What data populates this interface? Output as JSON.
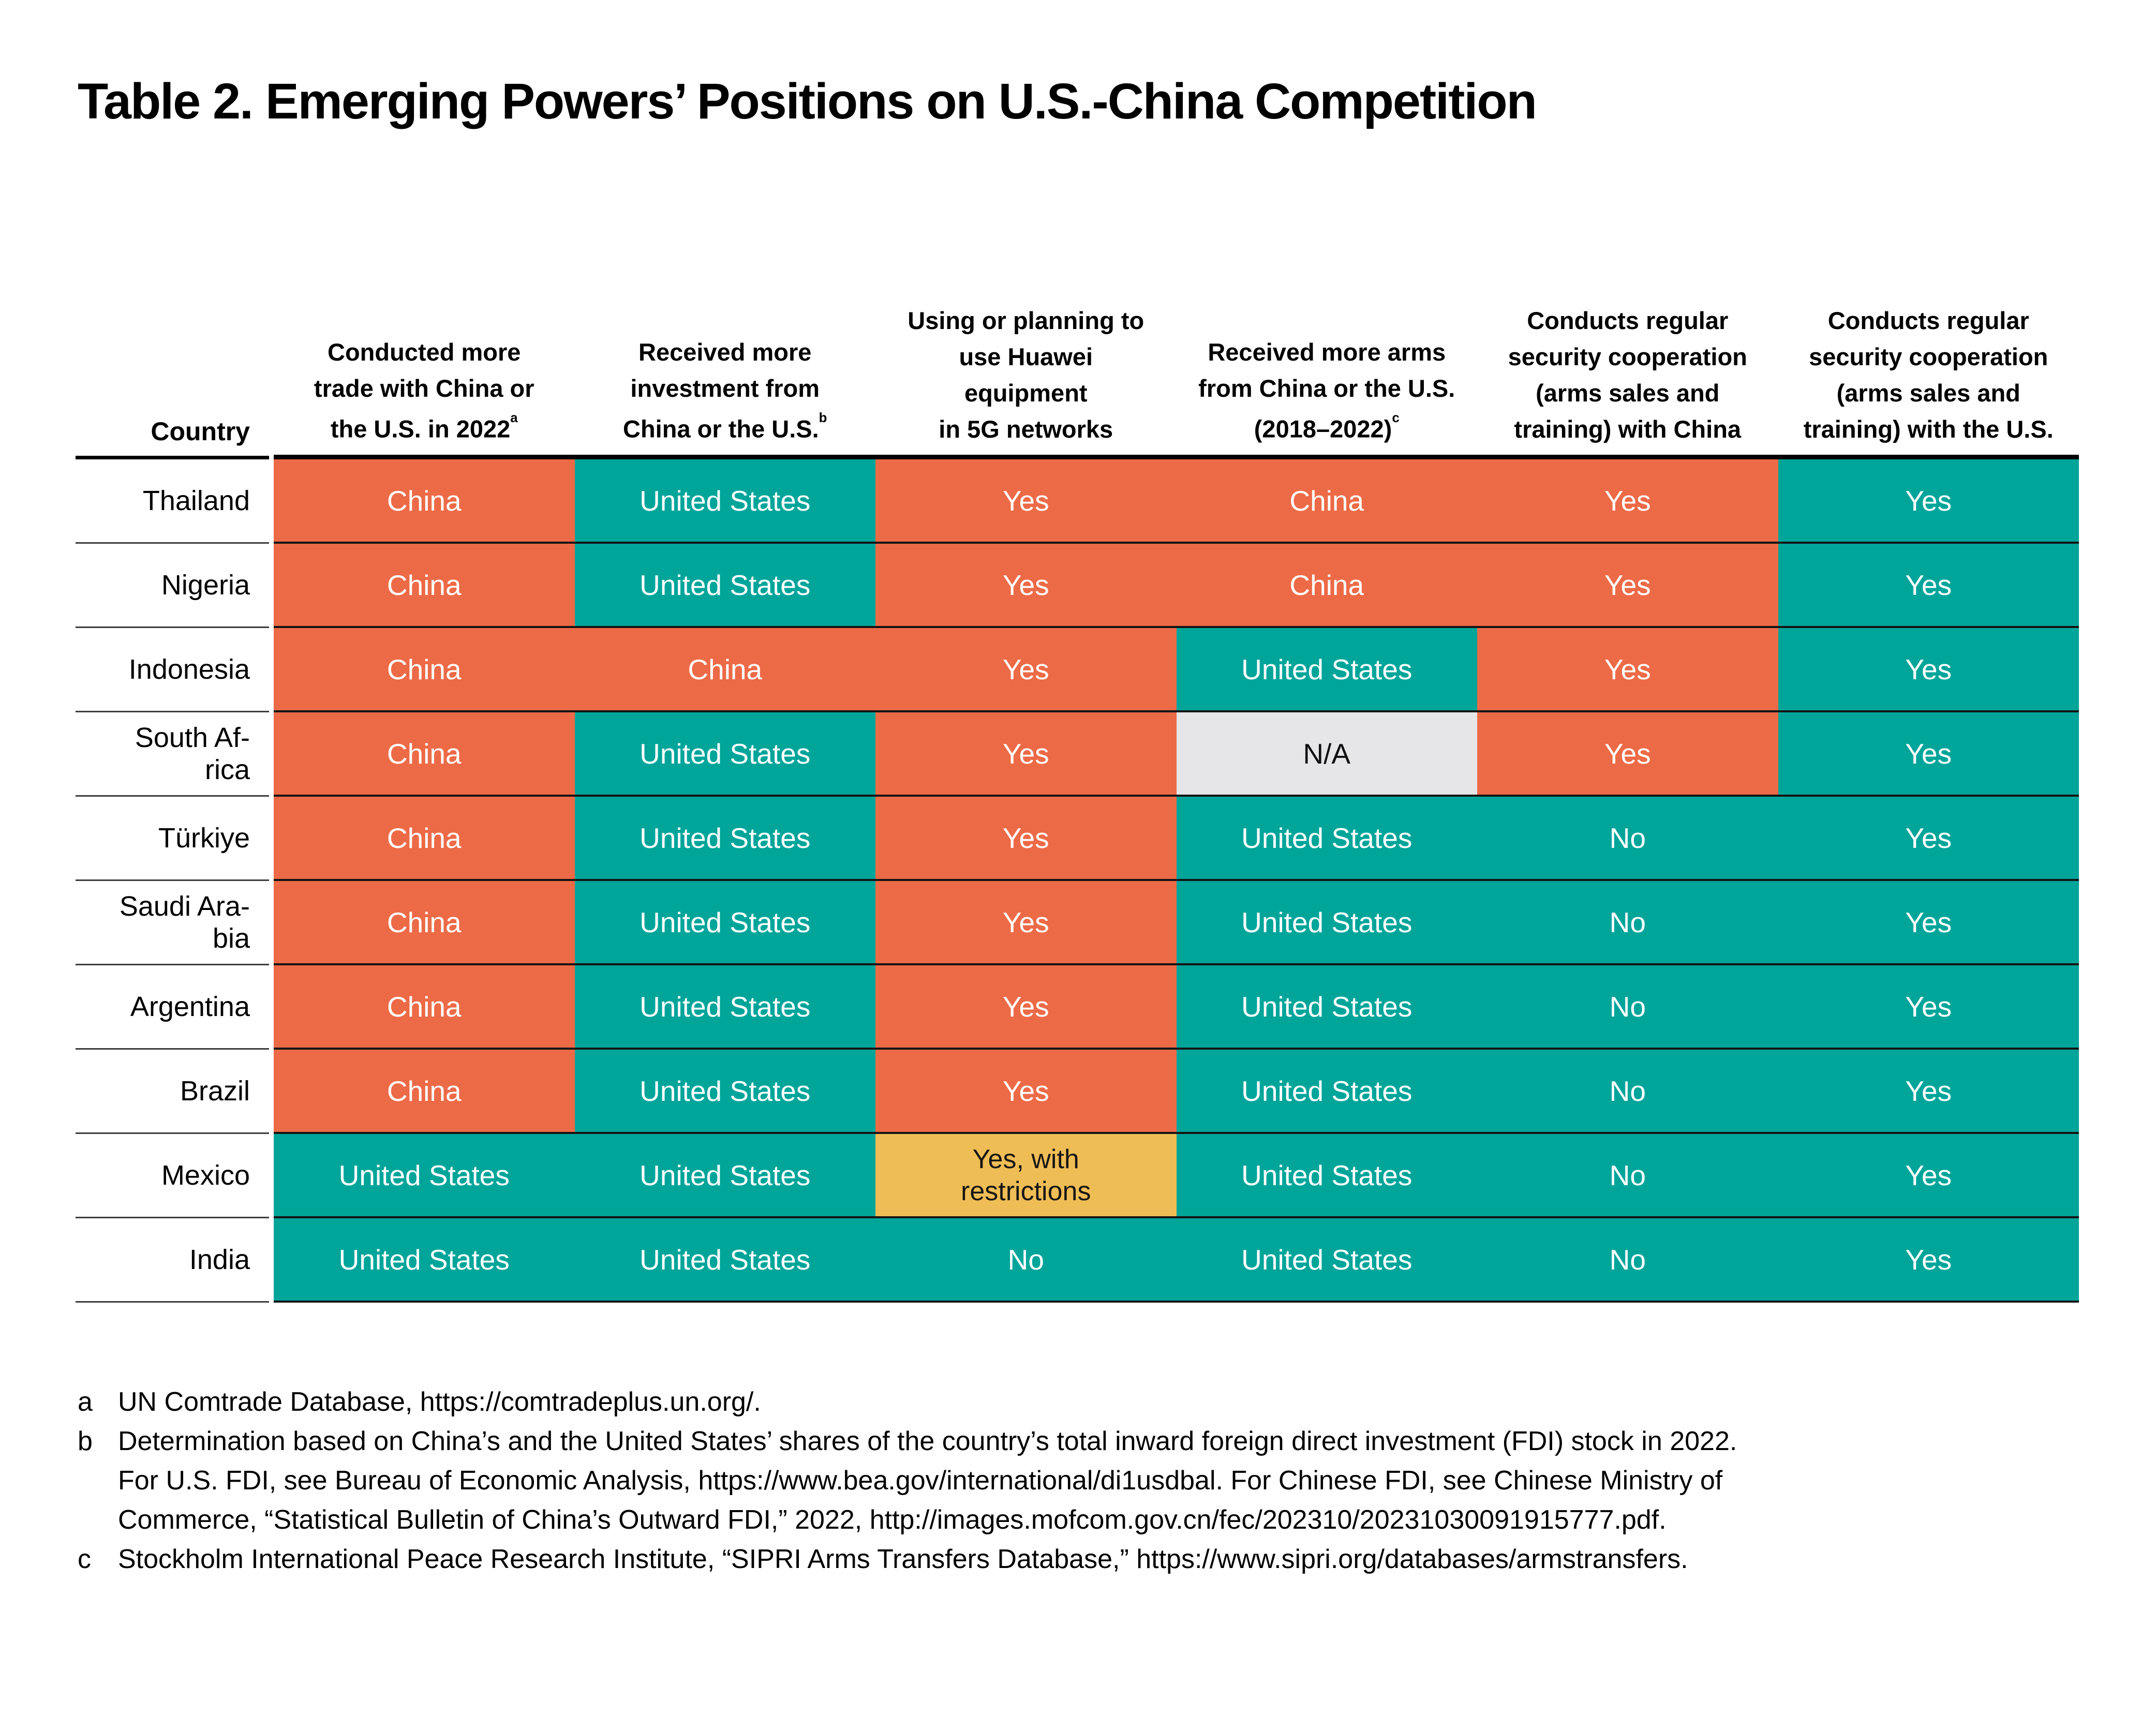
{
  "title": "Table 2. Emerging Powers’ Positions on U.S.-China Competition",
  "colors": {
    "china_orange": "#ED6A47",
    "us_teal": "#00A59A",
    "restricted_amber": "#EFBD55",
    "na_gray": "#E6E6E9",
    "rule_black": "#000000"
  },
  "table": {
    "country_header": "Country",
    "columns": [
      {
        "text": "Conducted more\ntrade with China or\nthe U.S. in 2022",
        "sup": "a"
      },
      {
        "text": "Received more\ninvestment from\nChina or the U.S.",
        "sup": "b"
      },
      {
        "text": "Using or planning to\nuse Huawei\nequipment\nin 5G networks",
        "sup": ""
      },
      {
        "text": "Received more arms\nfrom China or the U.S.\n(2018–2022)",
        "sup": "c"
      },
      {
        "text": "Conducts regular\nsecurity cooperation\n(arms sales and\ntraining) with China",
        "sup": ""
      },
      {
        "text": "Conducts regular\nsecurity cooperation\n(arms sales and\ntraining) with the U.S.",
        "sup": ""
      }
    ],
    "rows": [
      {
        "country": "Thailand",
        "cells": [
          {
            "text": "China",
            "type": "china"
          },
          {
            "text": "United States",
            "type": "us"
          },
          {
            "text": "Yes",
            "type": "china"
          },
          {
            "text": "China",
            "type": "china"
          },
          {
            "text": "Yes",
            "type": "china"
          },
          {
            "text": "Yes",
            "type": "us"
          }
        ]
      },
      {
        "country": "Nigeria",
        "cells": [
          {
            "text": "China",
            "type": "china"
          },
          {
            "text": "United States",
            "type": "us"
          },
          {
            "text": "Yes",
            "type": "china"
          },
          {
            "text": "China",
            "type": "china"
          },
          {
            "text": "Yes",
            "type": "china"
          },
          {
            "text": "Yes",
            "type": "us"
          }
        ]
      },
      {
        "country": "Indonesia",
        "cells": [
          {
            "text": "China",
            "type": "china"
          },
          {
            "text": "China",
            "type": "china"
          },
          {
            "text": "Yes",
            "type": "china"
          },
          {
            "text": "United States",
            "type": "us"
          },
          {
            "text": "Yes",
            "type": "china"
          },
          {
            "text": "Yes",
            "type": "us"
          }
        ]
      },
      {
        "country": "South Af-\nrica",
        "cells": [
          {
            "text": "China",
            "type": "china"
          },
          {
            "text": "United States",
            "type": "us"
          },
          {
            "text": "Yes",
            "type": "china"
          },
          {
            "text": "N/A",
            "type": "na"
          },
          {
            "text": "Yes",
            "type": "china"
          },
          {
            "text": "Yes",
            "type": "us"
          }
        ]
      },
      {
        "country": "Türkiye",
        "cells": [
          {
            "text": "China",
            "type": "china"
          },
          {
            "text": "United States",
            "type": "us"
          },
          {
            "text": "Yes",
            "type": "china"
          },
          {
            "text": "United States",
            "type": "us"
          },
          {
            "text": "No",
            "type": "us"
          },
          {
            "text": "Yes",
            "type": "us"
          }
        ]
      },
      {
        "country": "Saudi Ara-\nbia",
        "cells": [
          {
            "text": "China",
            "type": "china"
          },
          {
            "text": "United States",
            "type": "us"
          },
          {
            "text": "Yes",
            "type": "china"
          },
          {
            "text": "United States",
            "type": "us"
          },
          {
            "text": "No",
            "type": "us"
          },
          {
            "text": "Yes",
            "type": "us"
          }
        ]
      },
      {
        "country": "Argentina",
        "cells": [
          {
            "text": "China",
            "type": "china"
          },
          {
            "text": "United States",
            "type": "us"
          },
          {
            "text": "Yes",
            "type": "china"
          },
          {
            "text": "United States",
            "type": "us"
          },
          {
            "text": "No",
            "type": "us"
          },
          {
            "text": "Yes",
            "type": "us"
          }
        ]
      },
      {
        "country": "Brazil",
        "cells": [
          {
            "text": "China",
            "type": "china"
          },
          {
            "text": "United States",
            "type": "us"
          },
          {
            "text": "Yes",
            "type": "china"
          },
          {
            "text": "United States",
            "type": "us"
          },
          {
            "text": "No",
            "type": "us"
          },
          {
            "text": "Yes",
            "type": "us"
          }
        ]
      },
      {
        "country": "Mexico",
        "cells": [
          {
            "text": "United States",
            "type": "us"
          },
          {
            "text": "United States",
            "type": "us"
          },
          {
            "text": "Yes, with\nrestrictions",
            "type": "restricted"
          },
          {
            "text": "United States",
            "type": "us"
          },
          {
            "text": "No",
            "type": "us"
          },
          {
            "text": "Yes",
            "type": "us"
          }
        ]
      },
      {
        "country": "India",
        "cells": [
          {
            "text": "United States",
            "type": "us"
          },
          {
            "text": "United States",
            "type": "us"
          },
          {
            "text": "No",
            "type": "us"
          },
          {
            "text": "United States",
            "type": "us"
          },
          {
            "text": "No",
            "type": "us"
          },
          {
            "text": "Yes",
            "type": "us"
          }
        ]
      }
    ]
  },
  "footnotes": [
    {
      "marker": "a",
      "text": "UN Comtrade Database, https://comtradeplus.un.org/."
    },
    {
      "marker": "b",
      "text": "Determination based on China’s and the United States’ shares of the country’s total inward foreign direct investment (FDI) stock in 2022.\nFor U.S. FDI, see Bureau of Economic Analysis, https://www.bea.gov/international/di1usdbal. For Chinese FDI, see Chinese Ministry of\nCommerce, “Statistical Bulletin of China’s Outward FDI,” 2022, http://images.mofcom.gov.cn/fec/202310/20231030091915777.pdf."
    },
    {
      "marker": "c",
      "text": "Stockholm International Peace Research Institute, “SIPRI Arms Transfers Database,” https://www.sipri.org/databases/armstransfers."
    }
  ],
  "chart_data": {
    "type": "table",
    "title": "Table 2. Emerging Powers’ Positions on U.S.-China Competition",
    "columns": [
      "Country",
      "Conducted more trade with China or the U.S. in 2022 (a)",
      "Received more investment from China or the U.S. (b)",
      "Using or planning to use Huawei equipment in 5G networks",
      "Received more arms from China or the U.S. (2018–2022) (c)",
      "Conducts regular security cooperation (arms sales and training) with China",
      "Conducts regular security cooperation (arms sales and training) with the U.S."
    ],
    "rows": [
      [
        "Thailand",
        "China",
        "United States",
        "Yes",
        "China",
        "Yes",
        "Yes"
      ],
      [
        "Nigeria",
        "China",
        "United States",
        "Yes",
        "China",
        "Yes",
        "Yes"
      ],
      [
        "Indonesia",
        "China",
        "China",
        "Yes",
        "United States",
        "Yes",
        "Yes"
      ],
      [
        "South Africa",
        "China",
        "United States",
        "Yes",
        "N/A",
        "Yes",
        "Yes"
      ],
      [
        "Türkiye",
        "China",
        "United States",
        "Yes",
        "United States",
        "No",
        "Yes"
      ],
      [
        "Saudi Arabia",
        "China",
        "United States",
        "Yes",
        "United States",
        "No",
        "Yes"
      ],
      [
        "Argentina",
        "China",
        "United States",
        "Yes",
        "United States",
        "No",
        "Yes"
      ],
      [
        "Brazil",
        "China",
        "United States",
        "Yes",
        "United States",
        "No",
        "Yes"
      ],
      [
        "Mexico",
        "United States",
        "United States",
        "Yes, with restrictions",
        "United States",
        "No",
        "Yes"
      ],
      [
        "India",
        "United States",
        "United States",
        "No",
        "United States",
        "No",
        "Yes"
      ]
    ]
  }
}
